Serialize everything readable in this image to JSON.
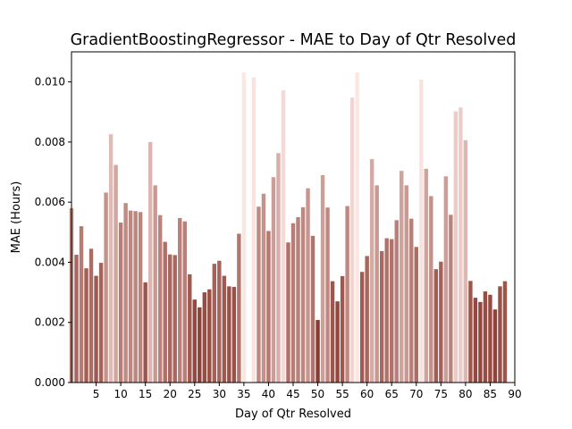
{
  "chart_data": {
    "type": "bar",
    "title": "GradientBoostingRegressor - MAE to Day of Qtr Resolved",
    "xlabel": "Day of Qtr Resolved",
    "ylabel": "MAE (Hours)",
    "xlim": [
      0,
      90
    ],
    "ylim": [
      0,
      0.011
    ],
    "xticks": [
      5,
      10,
      15,
      20,
      25,
      30,
      35,
      40,
      45,
      50,
      55,
      60,
      65,
      70,
      75,
      80,
      85,
      90
    ],
    "xtick_labels": [
      "5",
      "10",
      "15",
      "20",
      "25",
      "30",
      "35",
      "40",
      "45",
      "50",
      "55",
      "60",
      "65",
      "70",
      "75",
      "80",
      "85",
      "90"
    ],
    "yticks": [
      0,
      0.002,
      0.004,
      0.006,
      0.008,
      0.01
    ],
    "ytick_labels": [
      "0.000",
      "0.002",
      "0.004",
      "0.006",
      "0.008",
      "0.010"
    ],
    "grid": false,
    "legend": "none",
    "color_low": "#8b3a30",
    "color_high": "#fce6e2",
    "x": [
      0,
      1,
      2,
      3,
      4,
      5,
      6,
      7,
      8,
      9,
      10,
      11,
      12,
      13,
      14,
      15,
      16,
      17,
      18,
      19,
      20,
      21,
      22,
      23,
      24,
      25,
      26,
      27,
      28,
      29,
      30,
      31,
      32,
      33,
      34,
      35,
      36,
      37,
      38,
      39,
      40,
      41,
      42,
      43,
      44,
      45,
      46,
      47,
      48,
      49,
      50,
      51,
      52,
      53,
      54,
      55,
      56,
      57,
      58,
      59,
      60,
      61,
      62,
      63,
      64,
      65,
      66,
      67,
      68,
      69,
      70,
      71,
      72,
      73,
      74,
      75,
      76,
      77,
      78,
      79,
      80,
      81,
      82,
      83,
      84,
      85,
      86,
      87,
      88
    ],
    "values": [
      0.0058,
      0.00425,
      0.0052,
      0.0038,
      0.00445,
      0.00355,
      0.00398,
      0.00632,
      0.00826,
      0.00724,
      0.00532,
      0.00597,
      0.00572,
      0.0057,
      0.00567,
      0.00333,
      0.008,
      0.00656,
      0.00557,
      0.00468,
      0.00426,
      0.00424,
      0.00547,
      0.00536,
      0.0036,
      0.00276,
      0.0025,
      0.003,
      0.0031,
      0.00395,
      0.00405,
      0.00355,
      0.0032,
      0.00318,
      0.00495,
      0.01032,
      null,
      0.01015,
      0.00585,
      0.00628,
      0.00504,
      0.00683,
      0.00763,
      0.00972,
      0.00466,
      0.0053,
      0.0055,
      0.00583,
      0.00646,
      0.00488,
      0.00208,
      0.0069,
      0.00582,
      0.00337,
      0.0027,
      0.00354,
      0.00587,
      0.00948,
      0.01032,
      0.00368,
      0.00421,
      0.00743,
      0.00656,
      0.00437,
      0.0048,
      0.00477,
      0.0054,
      0.00704,
      0.00656,
      0.00545,
      0.00451,
      0.01008,
      0.00711,
      0.0062,
      0.00377,
      0.00402,
      0.00686,
      0.00558,
      0.00902,
      0.00915,
      0.00806,
      0.00338,
      0.00282,
      0.00268,
      0.00303,
      0.00292,
      0.00243,
      0.0032,
      0.00337
    ]
  }
}
